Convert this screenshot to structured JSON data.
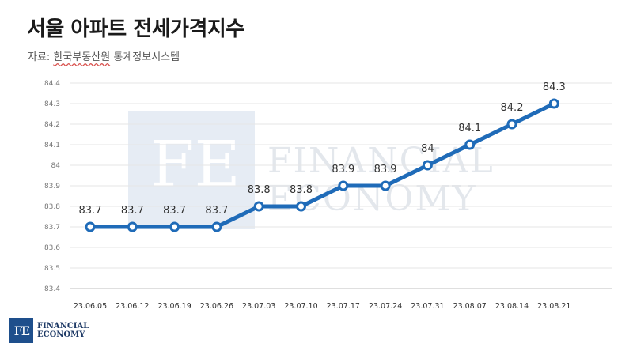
{
  "header": {
    "title": "서울 아파트 전세가격지수",
    "source_prefix": "자료:",
    "source_name": "한국부동산원",
    "source_suffix": "통계정보시스템"
  },
  "watermark": {
    "monogram": "FE",
    "line1": "FINANCIAL",
    "line2": "ECONOMY"
  },
  "logo": {
    "monogram": "FE",
    "line1": "FINANCIAL",
    "line2": "ECONOMY"
  },
  "chart_data": {
    "type": "line",
    "categories": [
      "23.06.05",
      "23.06.12",
      "23.06.19",
      "23.06.26",
      "23.07.03",
      "23.07.10",
      "23.07.17",
      "23.07.24",
      "23.07.31",
      "23.08.07",
      "23.08.14",
      "23.08.21"
    ],
    "values": [
      83.7,
      83.7,
      83.7,
      83.7,
      83.8,
      83.8,
      83.9,
      83.9,
      84,
      84.1,
      84.2,
      84.3
    ],
    "data_labels": [
      "83.7",
      "83.7",
      "83.7",
      "83.7",
      "83.8",
      "83.8",
      "83.9",
      "83.9",
      "84",
      "84.1",
      "84.2",
      "84.3"
    ],
    "y_ticks": [
      "83.4",
      "83.5",
      "83.6",
      "83.7",
      "83.8",
      "83.9",
      "84",
      "84.1",
      "84.2",
      "84.3",
      "84.4"
    ],
    "ylim": [
      83.4,
      84.4
    ],
    "grid": true,
    "line_color": "#1f6bb8",
    "marker_fill": "#ffffff"
  }
}
